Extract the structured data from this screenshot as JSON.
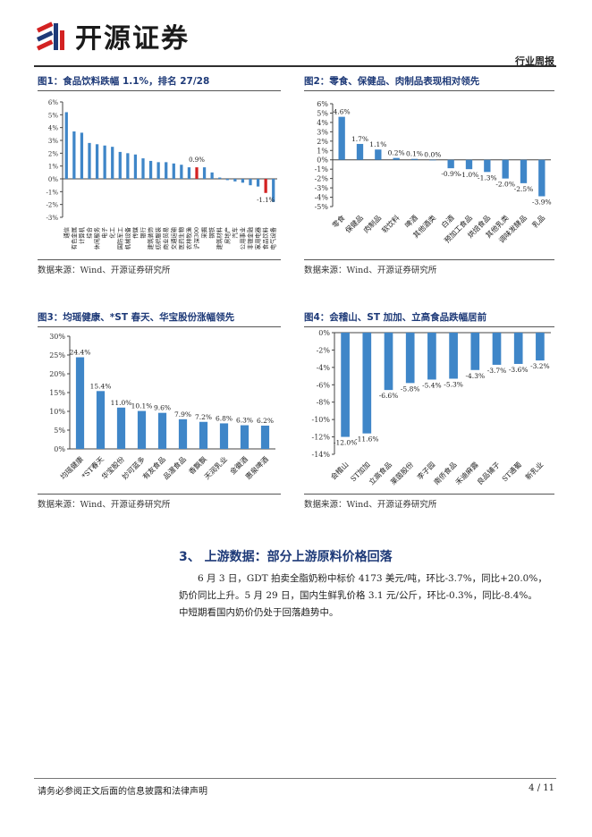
{
  "header": {
    "brand": "开源证券",
    "report_type": "行业周报"
  },
  "colors": {
    "bar_blue": "#3f86c8",
    "bar_red": "#d32222",
    "title_blue": "#1e3a78"
  },
  "figures": [
    {
      "title": "图1：食品饮料跌幅 1.1%，排名 27/28",
      "source": "数据来源：Wind、开源证券研究所",
      "chart_data": {
        "type": "bar",
        "categories": [
          "通信",
          "有色金属",
          "计算机",
          "综合",
          "休闲服务",
          "电子",
          "化工",
          "国防军工",
          "机械设备",
          "传媒",
          "银行",
          "建筑装饰",
          "纺织服装",
          "商业贸易",
          "交通运输",
          "医药生物",
          "农林牧渔",
          "沪深300",
          "采掘",
          "钢铁",
          "建筑材料",
          "房地产",
          "汽车",
          "公用事业",
          "非银金融",
          "家用电器",
          "食品饮料",
          "电气设备"
        ],
        "values": [
          5.2,
          3.7,
          3.6,
          2.8,
          2.7,
          2.6,
          2.5,
          2.1,
          2.0,
          1.9,
          1.6,
          1.4,
          1.3,
          1.3,
          1.2,
          1.1,
          0.9,
          0.9,
          0.9,
          0.5,
          0.1,
          -0.1,
          -0.2,
          -0.3,
          -0.5,
          -0.6,
          -1.1,
          -1.8
        ],
        "highlight": {
          "沪深300": "#d32222",
          "食品饮料": "#d32222"
        },
        "annotations": [
          {
            "category": "沪深300",
            "label": "0.9%"
          },
          {
            "category": "食品饮料",
            "label": "-1.1%"
          }
        ],
        "ylim": [
          -3,
          6
        ],
        "ticks": [
          -3,
          -2,
          -1,
          0,
          1,
          2,
          3,
          4,
          5,
          6
        ],
        "tick_labels": [
          "-3%",
          "-2%",
          "-1%",
          "0%",
          "1%",
          "2%",
          "3%",
          "4%",
          "5%",
          "6%"
        ]
      }
    },
    {
      "title": "图2：零食、保健品、肉制品表现相对领先",
      "source": "数据来源：Wind、开源证券研究所",
      "chart_data": {
        "type": "bar",
        "categories": [
          "零食",
          "保健品",
          "肉制品",
          "软饮料",
          "啤酒",
          "其他酒类",
          "白酒",
          "预加工食品",
          "烘焙食品",
          "其他乳类",
          "调味发酵品",
          "乳品"
        ],
        "values": [
          4.6,
          1.7,
          1.1,
          0.2,
          0.1,
          0.0,
          -0.9,
          -1.0,
          -1.3,
          -2.0,
          -2.5,
          -3.9
        ],
        "labels": [
          "4.6%",
          "1.7%",
          "1.1%",
          "0.2%",
          "0.1%",
          "0.0%",
          "-0.9%",
          "-1.0%",
          "-1.3%",
          "-2.0%",
          "-2.5%",
          "-3.9%"
        ],
        "ylim": [
          -5,
          6
        ],
        "ticks": [
          -5,
          -4,
          -3,
          -2,
          -1,
          0,
          1,
          2,
          3,
          4,
          5,
          6
        ],
        "tick_labels": [
          "-5%",
          "-4%",
          "-3%",
          "-2%",
          "-1%",
          "0%",
          "1%",
          "2%",
          "3%",
          "4%",
          "5%",
          "6%"
        ]
      }
    },
    {
      "title": "图3：均瑶健康、*ST 春天、华宝股份涨幅领先",
      "source": "数据来源：Wind、开源证券研究所",
      "chart_data": {
        "type": "bar",
        "categories": [
          "均瑶健康",
          "*ST春天",
          "华宝股份",
          "妙可蓝多",
          "有友食品",
          "品渥食品",
          "香飘飘",
          "天润乳业",
          "金徽酒",
          "惠泉啤酒"
        ],
        "values": [
          24.4,
          15.4,
          11.0,
          10.1,
          9.6,
          7.9,
          7.2,
          6.8,
          6.3,
          6.2
        ],
        "labels": [
          "24.4%",
          "15.4%",
          "11.0%",
          "10.1%",
          "9.6%",
          "7.9%",
          "7.2%",
          "6.8%",
          "6.3%",
          "6.2%"
        ],
        "ylim": [
          0,
          30
        ],
        "ticks": [
          0,
          5,
          10,
          15,
          20,
          25,
          30
        ],
        "tick_labels": [
          "0%",
          "5%",
          "10%",
          "15%",
          "20%",
          "25%",
          "30%"
        ]
      }
    },
    {
      "title": "图4：会稽山、ST 加加、立高食品跌幅居前",
      "source": "数据来源：Wind、开源证券研究所",
      "chart_data": {
        "type": "bar",
        "categories": [
          "会稽山",
          "ST加加",
          "立高食品",
          "莱茵股份",
          "李子园",
          "南侨食品",
          "禾迪麻露",
          "良品铺子",
          "ST通葡",
          "新乳业"
        ],
        "values": [
          -12.0,
          -11.6,
          -6.6,
          -5.8,
          -5.4,
          -5.3,
          -4.3,
          -3.7,
          -3.6,
          -3.2
        ],
        "labels": [
          "-12.0%",
          "-11.6%",
          "-6.6%",
          "-5.8%",
          "-5.4%",
          "-5.3%",
          "-4.3%",
          "-3.7%",
          "-3.6%",
          "-3.2%"
        ],
        "ylim": [
          -14,
          0
        ],
        "ticks": [
          -14,
          -12,
          -10,
          -8,
          -6,
          -4,
          -2,
          0
        ],
        "tick_labels": [
          "-14%",
          "-12%",
          "-10%",
          "-8%",
          "-6%",
          "-4%",
          "-2%",
          "0%"
        ]
      }
    }
  ],
  "section": {
    "heading": "3、 上游数据：部分上游原料价格回落",
    "paragraph_1": "6 月 3 日，GDT 拍卖全脂奶粉中标价 4173 美元/吨，环比-3.7%，同比+20.0%，",
    "paragraph_2": "奶价同比上升。5 月 29 日，国内生鲜乳价格 3.1 元/公斤，环比-0.3%，同比-8.4%。",
    "paragraph_3": "中短期看国内奶价仍处于回落趋势中。"
  },
  "footer": {
    "disclaimer": "请务必参阅正文后面的信息披露和法律声明",
    "page": "4 / 11"
  }
}
